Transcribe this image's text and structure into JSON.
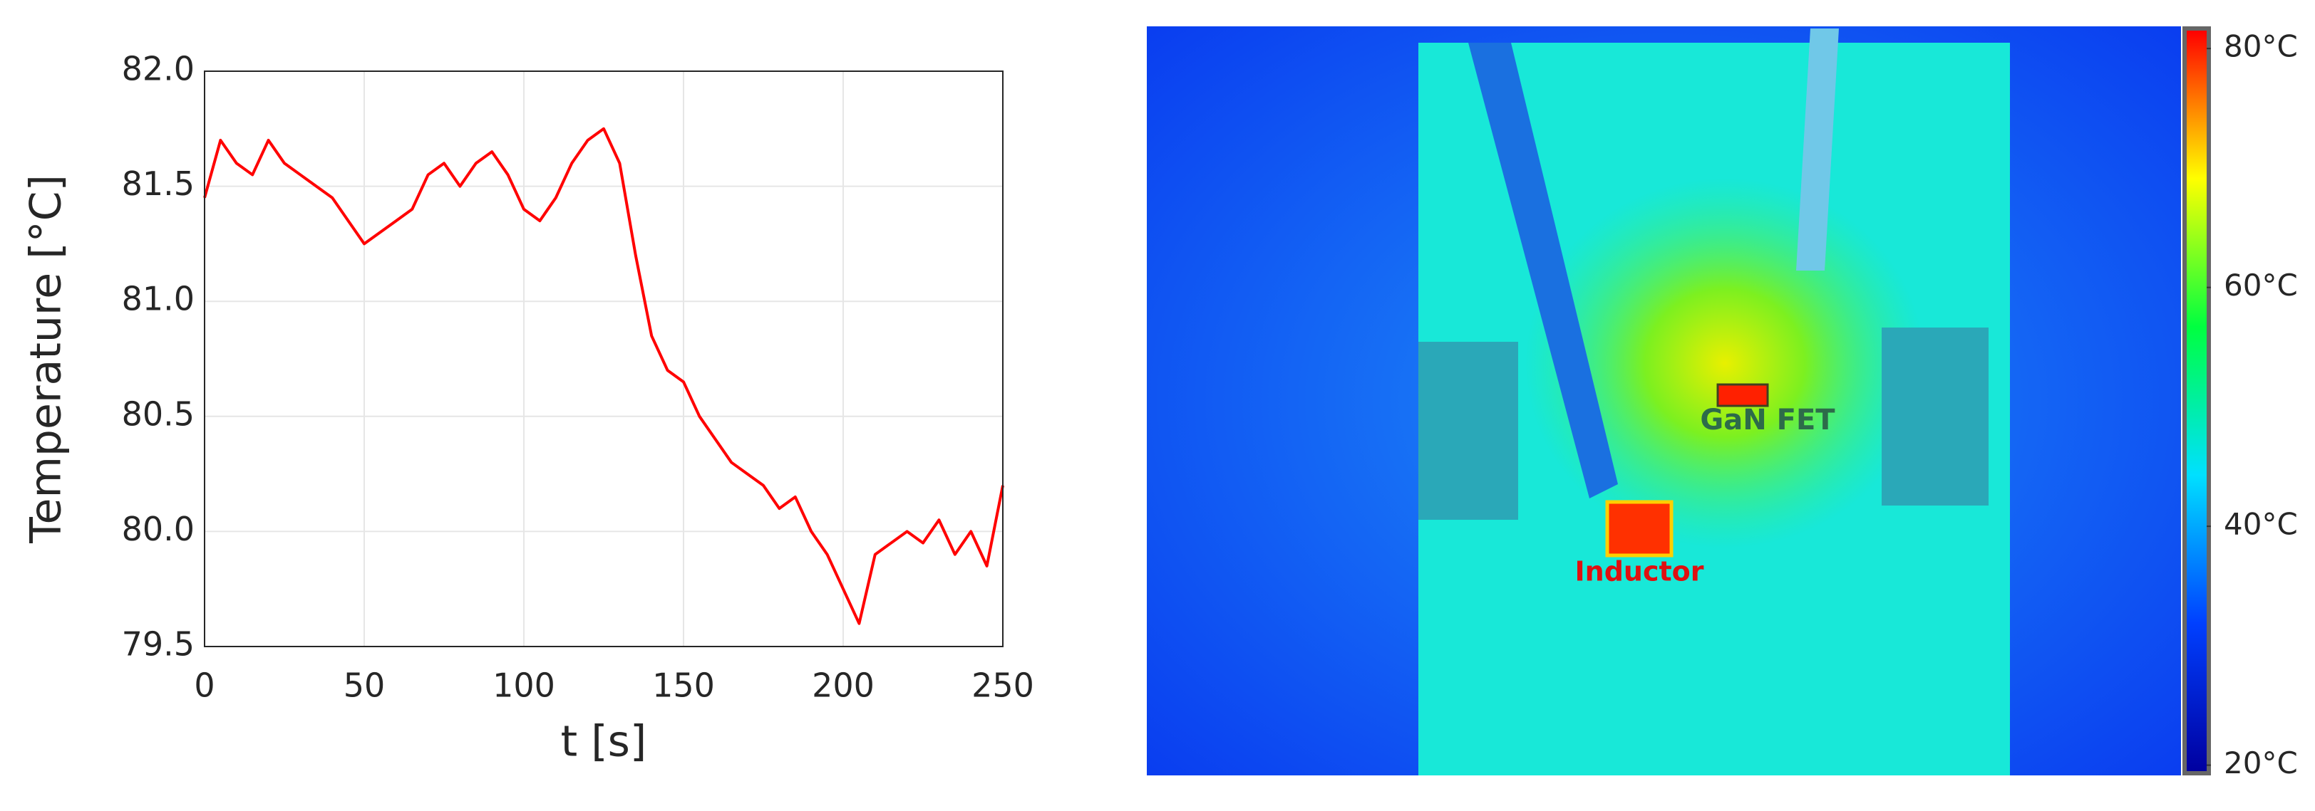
{
  "chart_data": {
    "type": "line",
    "xlabel": "t [s]",
    "ylabel": "Temperature [°C]",
    "x": [
      0,
      5,
      10,
      15,
      20,
      25,
      30,
      35,
      40,
      45,
      50,
      55,
      60,
      65,
      70,
      75,
      80,
      85,
      90,
      95,
      100,
      105,
      110,
      115,
      120,
      125,
      130,
      135,
      140,
      145,
      150,
      155,
      160,
      165,
      170,
      175,
      180,
      185,
      190,
      195,
      200,
      205,
      210,
      215,
      220,
      225,
      230,
      235,
      240,
      245,
      250
    ],
    "series": [
      {
        "name": "Temperature",
        "color": "#ff0000",
        "values": [
          81.45,
          81.7,
          81.6,
          81.55,
          81.7,
          81.6,
          81.55,
          81.5,
          81.45,
          81.35,
          81.25,
          81.3,
          81.35,
          81.4,
          81.55,
          81.6,
          81.5,
          81.6,
          81.65,
          81.55,
          81.4,
          81.35,
          81.45,
          81.6,
          81.7,
          81.75,
          81.6,
          81.2,
          80.85,
          80.7,
          80.65,
          80.5,
          80.4,
          80.3,
          80.25,
          80.2,
          80.1,
          80.15,
          80.0,
          79.9,
          79.75,
          79.6,
          79.9,
          79.95,
          80.0,
          79.95,
          80.05,
          79.9,
          80.0,
          79.85,
          80.2
        ]
      }
    ],
    "xlim": [
      0,
      250
    ],
    "xticks": [
      0,
      50,
      100,
      150,
      200,
      250
    ],
    "ylim": [
      79.5,
      82.0
    ],
    "yticks": [
      79.5,
      {
        "value": 80.0,
        "label": "80.0"
      },
      80.5,
      {
        "value": 81.0,
        "label": "81.0"
      },
      81.5,
      {
        "value": 82.0,
        "label": "82.0"
      }
    ],
    "grid": true
  },
  "thermal_image": {
    "annotations": [
      "GaN FET",
      "Inductor"
    ],
    "clim": [
      19.5,
      81.5
    ],
    "colorbar_ticks": [
      {
        "value": 80,
        "label": "80°C"
      },
      {
        "value": 60,
        "label": "60°C"
      },
      {
        "value": 40,
        "label": "40°C"
      },
      {
        "value": 20,
        "label": "20°C"
      }
    ]
  }
}
